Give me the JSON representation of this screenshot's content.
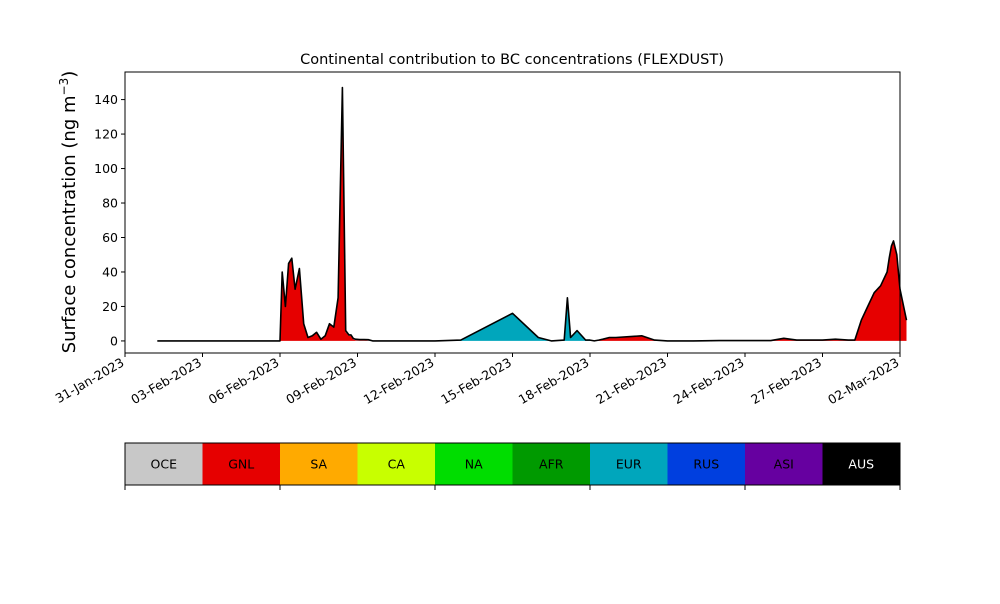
{
  "chart_data": {
    "type": "area",
    "stacked": true,
    "title": "Continental contribution to BC concentrations (FLEXDUST)",
    "ylabel": "Surface concentration (ng m",
    "ylabel_exponent": "−3",
    "ylabel_close": ")",
    "xlabel": "",
    "xlim": [
      "2023-01-31",
      "2023-03-02"
    ],
    "ylim": [
      -7,
      156
    ],
    "yticks": [
      0,
      20,
      40,
      60,
      80,
      100,
      120,
      140
    ],
    "xticks": [
      "31-Jan-2023",
      "03-Feb-2023",
      "06-Feb-2023",
      "09-Feb-2023",
      "12-Feb-2023",
      "15-Feb-2023",
      "18-Feb-2023",
      "21-Feb-2023",
      "24-Feb-2023",
      "27-Feb-2023",
      "02-Mar-2023"
    ],
    "x": [
      "2023-02-01T06:00",
      "2023-02-06T00:00",
      "2023-02-06T02:00",
      "2023-02-06T05:00",
      "2023-02-06T08:00",
      "2023-02-06T11:00",
      "2023-02-06T14:00",
      "2023-02-06T18:00",
      "2023-02-06T22:00",
      "2023-02-07T02:00",
      "2023-02-07T06:00",
      "2023-02-07T10:00",
      "2023-02-07T14:00",
      "2023-02-07T18:00",
      "2023-02-07T22:00",
      "2023-02-08T02:00",
      "2023-02-08T06:00",
      "2023-02-08T10:00",
      "2023-02-08T13:00",
      "2023-02-08T16:00",
      "2023-02-08T18:00",
      "2023-02-08T20:00",
      "2023-02-08T22:00",
      "2023-02-09T02:00",
      "2023-02-09T06:00",
      "2023-02-09T10:00",
      "2023-02-09T14:00",
      "2023-02-09T18:00",
      "2023-02-10T00:00",
      "2023-02-11T00:00",
      "2023-02-12T00:00",
      "2023-02-13T00:00",
      "2023-02-15T00:00",
      "2023-02-16T00:00",
      "2023-02-16T12:00",
      "2023-02-17T00:00",
      "2023-02-17T03:00",
      "2023-02-17T06:00",
      "2023-02-17T12:00",
      "2023-02-17T20:00",
      "2023-02-18T00:00",
      "2023-02-18T04:00",
      "2023-02-18T08:00",
      "2023-02-18T12:00",
      "2023-02-18T18:00",
      "2023-02-19T00:00",
      "2023-02-20T00:00",
      "2023-02-20T12:00",
      "2023-02-21T00:00",
      "2023-02-21T06:00",
      "2023-02-21T12:00",
      "2023-02-22T00:00",
      "2023-02-23T00:00",
      "2023-02-25T00:00",
      "2023-02-25T12:00",
      "2023-02-26T00:00",
      "2023-02-26T18:00",
      "2023-02-27T00:00",
      "2023-02-27T12:00",
      "2023-02-28T00:00",
      "2023-02-28T06:00",
      "2023-02-28T12:00",
      "2023-02-28T18:00",
      "2023-03-01T00:00",
      "2023-03-01T06:00",
      "2023-03-01T12:00",
      "2023-03-01T14:00",
      "2023-03-01T16:00",
      "2023-03-01T18:00",
      "2023-03-01T21:00",
      "2023-03-02T00:00",
      "2023-03-02T06:00"
    ],
    "series": [
      {
        "name": "GNL",
        "color": "#e60000",
        "values": [
          0,
          0,
          40,
          20,
          45,
          48,
          30,
          42,
          10,
          2,
          3,
          5,
          1,
          3,
          10,
          8,
          25,
          145,
          5,
          3,
          3,
          1,
          0.5,
          0.3,
          0.3,
          0.2,
          0,
          0,
          0,
          0,
          0,
          0,
          0,
          0,
          0,
          0,
          0,
          0,
          0,
          0,
          0,
          0,
          0.5,
          1,
          2,
          2,
          3,
          0.5,
          0,
          0,
          0,
          0,
          0.2,
          0.2,
          1.5,
          0.5,
          0.5,
          0.5,
          1,
          0.5,
          0.5,
          12,
          20,
          28,
          32,
          40,
          48,
          55,
          58,
          50,
          30,
          12
        ]
      },
      {
        "name": "EUR",
        "color": "#00a6bc",
        "values": [
          0,
          0,
          0,
          0,
          0,
          0,
          0,
          0,
          0,
          0,
          0,
          0,
          0,
          0,
          0,
          0,
          0,
          1,
          1,
          0.5,
          0.5,
          0.5,
          0.5,
          0.5,
          0.5,
          0.5,
          0,
          0,
          0,
          0,
          0,
          0.5,
          16,
          2,
          0,
          0.5,
          25,
          2,
          6,
          0.5,
          0.5,
          0,
          0,
          0,
          0,
          0,
          0,
          0,
          0,
          0,
          0,
          0,
          0,
          0,
          0,
          0,
          0,
          0,
          0,
          0,
          0,
          0,
          0,
          0,
          0,
          0,
          0,
          0,
          0,
          0,
          0,
          0
        ]
      },
      {
        "name": "RUS",
        "color": "#003fdf",
        "values": [
          0,
          0,
          0,
          0,
          0,
          0,
          0,
          0,
          0,
          0,
          0,
          0,
          0,
          0,
          0,
          0,
          0,
          1,
          0,
          0,
          0,
          0,
          0,
          0,
          0,
          0,
          0,
          0,
          0,
          0,
          0,
          0,
          0,
          0,
          0,
          0,
          0,
          0,
          0,
          0,
          0,
          0,
          0,
          0,
          0,
          0,
          0,
          0,
          0,
          0,
          0,
          0,
          0,
          0,
          0,
          0,
          0,
          0,
          0,
          0,
          0,
          0,
          0,
          0,
          0,
          0,
          0,
          0,
          0,
          0,
          0,
          0
        ]
      }
    ],
    "legend": {
      "placement": "bottom",
      "entries": [
        {
          "label": "OCE",
          "color": "#c8c8c8",
          "text_color": "#000000"
        },
        {
          "label": "GNL",
          "color": "#e60000",
          "text_color": "#000000"
        },
        {
          "label": "SA",
          "color": "#ffaa00",
          "text_color": "#000000"
        },
        {
          "label": "CA",
          "color": "#c8ff00",
          "text_color": "#000000"
        },
        {
          "label": "NA",
          "color": "#00dd00",
          "text_color": "#000000"
        },
        {
          "label": "AFR",
          "color": "#009a00",
          "text_color": "#000000"
        },
        {
          "label": "EUR",
          "color": "#00a6bc",
          "text_color": "#000000"
        },
        {
          "label": "RUS",
          "color": "#003fdf",
          "text_color": "#000000"
        },
        {
          "label": "ASI",
          "color": "#6600a0",
          "text_color": "#000000"
        },
        {
          "label": "AUS",
          "color": "#000000",
          "text_color": "#ffffff"
        }
      ]
    },
    "grid": false
  }
}
